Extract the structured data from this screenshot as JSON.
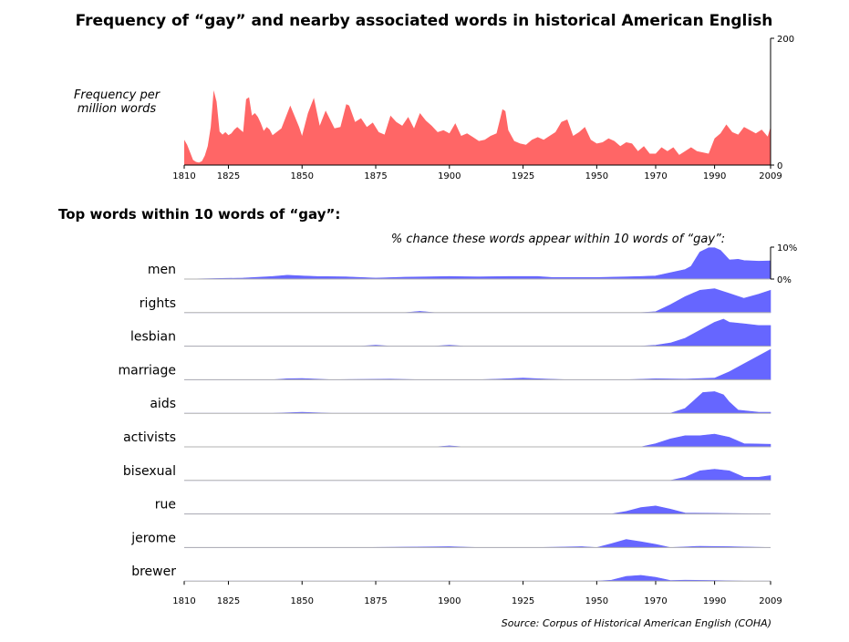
{
  "title": "Frequency of “gay” and nearby associated words in historical American English",
  "colors": {
    "top_fill": "#ff6666",
    "word_fill": "#6666ff",
    "baseline": "#b0b0b0",
    "axis": "#000000"
  },
  "chart_data": [
    {
      "type": "area",
      "ylabel": "Frequency per million words",
      "ylabel_lines": [
        "Frequency per",
        "million words"
      ],
      "xlim": [
        1810,
        2009
      ],
      "ylim": [
        0,
        200
      ],
      "yticks": [
        "0",
        "200"
      ],
      "xticks": [
        "1810",
        "1825",
        "1850",
        "1875",
        "1900",
        "1925",
        "1950",
        "1970",
        "1990",
        "2009"
      ],
      "x": [
        1810,
        1811,
        1812,
        1813,
        1814,
        1815,
        1816,
        1817,
        1818,
        1819,
        1820,
        1821,
        1822,
        1823,
        1824,
        1825,
        1826,
        1827,
        1828,
        1829,
        1830,
        1831,
        1832,
        1833,
        1834,
        1835,
        1836,
        1837,
        1838,
        1839,
        1840,
        1843,
        1846,
        1849,
        1850,
        1852,
        1854,
        1856,
        1858,
        1861,
        1863,
        1865,
        1866,
        1868,
        1870,
        1872,
        1874,
        1876,
        1878,
        1880,
        1882,
        1884,
        1886,
        1888,
        1890,
        1892,
        1894,
        1896,
        1898,
        1900,
        1902,
        1904,
        1906,
        1908,
        1910,
        1912,
        1914,
        1916,
        1918,
        1919,
        1920,
        1922,
        1924,
        1926,
        1928,
        1930,
        1932,
        1934,
        1936,
        1938,
        1940,
        1942,
        1944,
        1946,
        1948,
        1950,
        1952,
        1954,
        1956,
        1958,
        1960,
        1962,
        1964,
        1966,
        1968,
        1970,
        1972,
        1974,
        1976,
        1978,
        1980,
        1982,
        1984,
        1986,
        1988,
        1990,
        1992,
        1994,
        1996,
        1998,
        2000,
        2002,
        2004,
        2006,
        2008,
        2009
      ],
      "y": [
        40,
        32,
        20,
        8,
        5,
        4,
        6,
        15,
        30,
        60,
        118,
        100,
        53,
        48,
        52,
        47,
        50,
        56,
        60,
        56,
        52,
        104,
        107,
        78,
        82,
        76,
        66,
        54,
        60,
        56,
        47,
        58,
        94,
        60,
        46,
        82,
        106,
        62,
        86,
        58,
        60,
        96,
        94,
        68,
        74,
        60,
        67,
        52,
        48,
        78,
        68,
        62,
        76,
        58,
        82,
        70,
        62,
        52,
        55,
        50,
        66,
        46,
        50,
        44,
        38,
        40,
        46,
        50,
        88,
        85,
        55,
        38,
        34,
        32,
        40,
        44,
        40,
        46,
        52,
        68,
        72,
        46,
        52,
        60,
        40,
        34,
        36,
        42,
        38,
        30,
        36,
        34,
        22,
        30,
        18,
        18,
        28,
        22,
        28,
        16,
        22,
        28,
        22,
        20,
        18,
        42,
        50,
        64,
        52,
        48,
        60,
        55,
        50,
        56,
        45,
        60
      ],
      "series": [
        {
          "name": "gay",
          "color": "#ff6666"
        }
      ]
    },
    {
      "type": "area",
      "subtitle": "Top words within 10 words of “gay”:",
      "note": "% chance these words appear within 10 words of “gay”:",
      "yticks": [
        "0%",
        "10%"
      ],
      "ylim": [
        0,
        10
      ],
      "xlim": [
        1810,
        2009
      ],
      "xticks": [
        "1810",
        "1825",
        "1850",
        "1875",
        "1900",
        "1925",
        "1950",
        "1970",
        "1990",
        "2009"
      ],
      "series": [
        {
          "name": "men",
          "x": [
            1810,
            1830,
            1840,
            1845,
            1850,
            1855,
            1865,
            1875,
            1885,
            1900,
            1910,
            1920,
            1930,
            1935,
            1950,
            1965,
            1970,
            1975,
            1980,
            1982,
            1985,
            1988,
            1990,
            1992,
            1995,
            1998,
            2000,
            2005,
            2009
          ],
          "values": [
            0,
            0.3,
            0.8,
            1.2,
            1.0,
            0.8,
            0.7,
            0.3,
            0.6,
            0.8,
            0.7,
            0.8,
            0.8,
            0.5,
            0.5,
            0.8,
            1.0,
            2.0,
            3.0,
            4.0,
            8.5,
            9.8,
            9.8,
            9.0,
            6.0,
            6.2,
            5.8,
            5.6,
            5.7
          ]
        },
        {
          "name": "rights",
          "x": [
            1810,
            1885,
            1890,
            1895,
            1965,
            1970,
            1975,
            1980,
            1985,
            1990,
            1995,
            2000,
            2005,
            2009
          ],
          "values": [
            0,
            0,
            0.4,
            0,
            0,
            0.3,
            2.5,
            5.0,
            7.0,
            7.5,
            6.0,
            4.5,
            5.8,
            7.0
          ]
        },
        {
          "name": "lesbian",
          "x": [
            1810,
            1870,
            1875,
            1880,
            1895,
            1900,
            1905,
            1965,
            1970,
            1975,
            1980,
            1985,
            1990,
            1993,
            1995,
            2000,
            2005,
            2009
          ],
          "values": [
            0,
            0,
            0.3,
            0,
            0,
            0.3,
            0,
            0,
            0.3,
            1.0,
            2.5,
            5.0,
            7.5,
            8.5,
            7.5,
            7.0,
            6.5,
            6.5
          ]
        },
        {
          "name": "marriage",
          "x": [
            1810,
            1840,
            1845,
            1850,
            1855,
            1860,
            1880,
            1890,
            1910,
            1920,
            1925,
            1930,
            1940,
            1960,
            1970,
            1980,
            1990,
            1995,
            2000,
            2005,
            2009
          ],
          "values": [
            0,
            0,
            0.3,
            0.4,
            0.2,
            0,
            0.2,
            0,
            0,
            0.3,
            0.5,
            0.3,
            0,
            0,
            0.3,
            0.2,
            0.5,
            2.5,
            5.0,
            7.5,
            9.5
          ]
        },
        {
          "name": "aids",
          "x": [
            1810,
            1840,
            1850,
            1860,
            1975,
            1980,
            1983,
            1986,
            1990,
            1993,
            1995,
            1998,
            2005,
            2009
          ],
          "values": [
            0,
            0,
            0.3,
            0,
            0,
            1.5,
            4.0,
            6.5,
            6.8,
            5.8,
            3.5,
            1.0,
            0.3,
            0.3
          ]
        },
        {
          "name": "activists",
          "x": [
            1810,
            1895,
            1900,
            1905,
            1965,
            1970,
            1975,
            1980,
            1985,
            1990,
            1995,
            2000,
            2009
          ],
          "values": [
            0,
            0,
            0.3,
            0,
            0,
            1.0,
            2.5,
            3.5,
            3.5,
            4.0,
            3.0,
            1.0,
            0.8
          ]
        },
        {
          "name": "bisexual",
          "x": [
            1810,
            1975,
            1980,
            1985,
            1990,
            1995,
            2000,
            2005,
            2009
          ],
          "values": [
            0,
            0,
            1.0,
            3.0,
            3.5,
            3.0,
            1.0,
            1.0,
            1.5
          ]
        },
        {
          "name": "rue",
          "x": [
            1810,
            1955,
            1960,
            1965,
            1970,
            1975,
            1980,
            2009
          ],
          "values": [
            0,
            0,
            0.8,
            2.0,
            2.5,
            1.5,
            0.3,
            0
          ]
        },
        {
          "name": "jerome",
          "x": [
            1810,
            1870,
            1900,
            1910,
            1930,
            1945,
            1950,
            1955,
            1960,
            1965,
            1970,
            1975,
            1985,
            1995,
            2009
          ],
          "values": [
            0,
            0,
            0.3,
            0,
            0,
            0.3,
            0,
            1.2,
            2.5,
            1.8,
            1.0,
            0,
            0.4,
            0.3,
            0
          ]
        },
        {
          "name": "brewer",
          "x": [
            1810,
            1950,
            1955,
            1960,
            1965,
            1970,
            1975,
            1980,
            1990,
            2000,
            2009
          ],
          "values": [
            0,
            0,
            0.3,
            1.5,
            1.8,
            1.2,
            0.2,
            0.3,
            0.2,
            0,
            0
          ]
        }
      ]
    }
  ],
  "source": "Source: Corpus of Historical American English (COHA)"
}
